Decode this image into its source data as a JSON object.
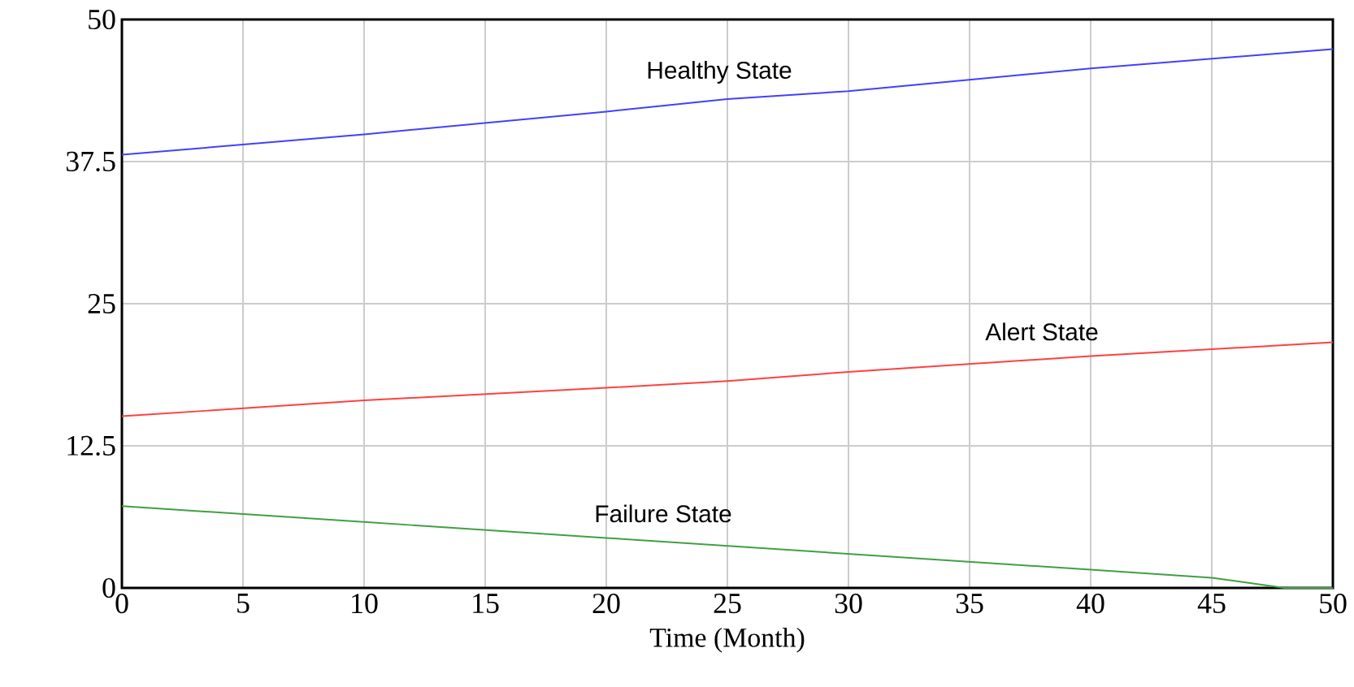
{
  "chart_data": {
    "type": "line",
    "xlabel": "Time (Month)",
    "xlim": [
      0,
      50
    ],
    "ylim": [
      0,
      50
    ],
    "xticks": [
      0,
      5,
      10,
      15,
      20,
      25,
      30,
      35,
      40,
      45,
      50
    ],
    "yticks": [
      0,
      12.5,
      25,
      37.5,
      50
    ],
    "grid": true,
    "marker": "none",
    "line_style": "solid",
    "series": [
      {
        "name": "Healthy State",
        "color": "#4040ff",
        "x": [
          0,
          10,
          20,
          25,
          30,
          40,
          50
        ],
        "values": [
          38.1,
          39.9,
          41.9,
          43.0,
          43.7,
          45.7,
          47.4
        ]
      },
      {
        "name": "Alert State",
        "color": "#ff4040",
        "x": [
          0,
          10,
          20,
          25,
          30,
          40,
          50
        ],
        "values": [
          15.1,
          16.5,
          17.6,
          18.2,
          19.0,
          20.4,
          21.6
        ]
      },
      {
        "name": "Failure State",
        "color": "#40a040",
        "x": [
          0,
          10,
          20,
          30,
          40,
          45,
          48,
          50
        ],
        "values": [
          7.2,
          5.8,
          4.4,
          3.0,
          1.6,
          0.9,
          0,
          0
        ]
      }
    ]
  }
}
